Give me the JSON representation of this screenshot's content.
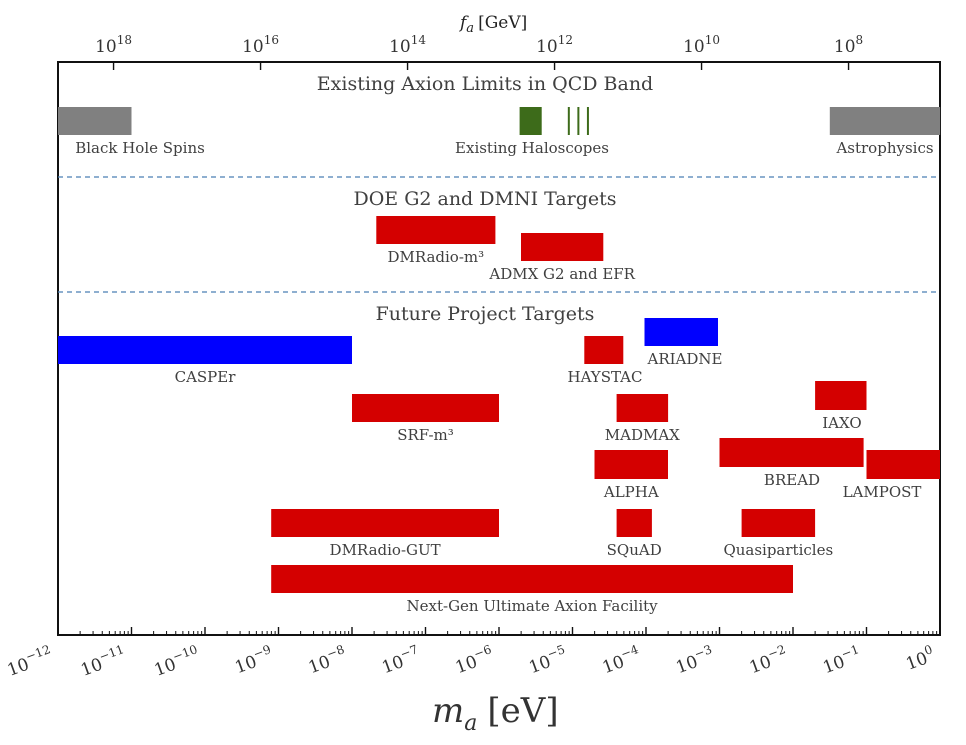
{
  "chart_data": {
    "type": "bar",
    "orientation": "horizontal-ranges",
    "title": "",
    "xlabel": "m_a [eV]",
    "xlabel_main": "m",
    "xlabel_sub": "a",
    "xlabel_unit": "[eV]",
    "xscale": "log",
    "xlim_exp": [
      -12,
      0
    ],
    "x_tick_exps": [
      -12,
      -11,
      -10,
      -9,
      -8,
      -7,
      -6,
      -5,
      -4,
      -3,
      -2,
      -1,
      0
    ],
    "x_tick_base": "10",
    "top_axis": {
      "label_main": "f",
      "label_sub": "a",
      "label_unit": "[GeV]",
      "tick_exps": [
        18,
        16,
        14,
        12,
        10,
        8
      ],
      "tick_base": "10",
      "relation_GeV_eV": 5700000.0
    },
    "sections": [
      {
        "id": "existing",
        "title": "Existing Axion Limits in QCD Band",
        "y": 83
      },
      {
        "id": "doe",
        "title": "DOE G2 and DMNI Targets",
        "y": 198
      },
      {
        "id": "future",
        "title": "Future Project Targets",
        "y": 313
      }
    ],
    "colors": {
      "limit": "#808080",
      "haloscope": "#3d6b1a",
      "target": "#d40000",
      "future_blue": "#0000ff",
      "separator": "#4a7fb5",
      "frame": "#111111"
    },
    "bars": [
      {
        "label": "Black Hole Spins",
        "min_exp": -12.0,
        "max_exp": -11.0,
        "color": "limit",
        "row": 1,
        "label_pos": "below-left"
      },
      {
        "label": "Astrophysics",
        "min_exp": -1.5,
        "max_exp": 0.0,
        "color": "limit",
        "row": 1,
        "label_pos": "below"
      },
      {
        "label": "Existing Haloscopes",
        "min_exp": -5.72,
        "max_exp": -5.42,
        "color": "haloscope",
        "row": 1,
        "label_pos": "below"
      },
      {
        "label": "DMRadio-m³",
        "min_exp": -7.67,
        "max_exp": -6.05,
        "color": "target",
        "row": 2,
        "label_pos": "below"
      },
      {
        "label": "ADMX G2 and EFR",
        "min_exp": -5.7,
        "max_exp": -4.58,
        "color": "target",
        "row": 3,
        "label_pos": "below"
      },
      {
        "label": "CASPEr",
        "min_exp": -12.0,
        "max_exp": -8.0,
        "color": "future_blue",
        "row": 5,
        "label_pos": "below"
      },
      {
        "label": "ARIADNE",
        "min_exp": -4.02,
        "max_exp": -3.02,
        "color": "future_blue",
        "row": 4,
        "label_pos": "below"
      },
      {
        "label": "HAYSTAC",
        "min_exp": -4.84,
        "max_exp": -4.31,
        "color": "target",
        "row": 5,
        "label_pos": "below"
      },
      {
        "label": "SRF-m³",
        "min_exp": -8.0,
        "max_exp": -6.0,
        "color": "target",
        "row": 6,
        "label_pos": "below"
      },
      {
        "label": "MADMAX",
        "min_exp": -4.4,
        "max_exp": -3.7,
        "color": "target",
        "row": 6,
        "label_pos": "below"
      },
      {
        "label": "IAXO",
        "min_exp": -1.7,
        "max_exp": -1.0,
        "color": "target",
        "row": 7,
        "label_pos": "below"
      },
      {
        "label": "ALPHA",
        "min_exp": -4.7,
        "max_exp": -3.7,
        "color": "target",
        "row": 8,
        "label_pos": "below"
      },
      {
        "label": "BREAD",
        "min_exp": -3.0,
        "max_exp": -1.04,
        "color": "target",
        "row": 8,
        "label_pos": "below"
      },
      {
        "label": "LAMPOST",
        "min_exp": -1.0,
        "max_exp": 0.0,
        "color": "target",
        "row": 9,
        "label_pos": "below"
      },
      {
        "label": "DMRadio-GUT",
        "min_exp": -9.1,
        "max_exp": -6.0,
        "color": "target",
        "row": 10,
        "label_pos": "below"
      },
      {
        "label": "SQuAD",
        "min_exp": -4.4,
        "max_exp": -3.92,
        "color": "target",
        "row": 10,
        "label_pos": "below"
      },
      {
        "label": "Quasiparticles",
        "min_exp": -2.7,
        "max_exp": -1.7,
        "color": "target",
        "row": 10,
        "label_pos": "below"
      },
      {
        "label": "Next-Gen Ultimate Axion Facility",
        "min_exp": -9.1,
        "max_exp": -2.0,
        "color": "target",
        "row": 11,
        "label_pos": "below"
      }
    ],
    "haloscope_lines_exp": [
      -5.05,
      -4.92,
      -4.79
    ]
  }
}
